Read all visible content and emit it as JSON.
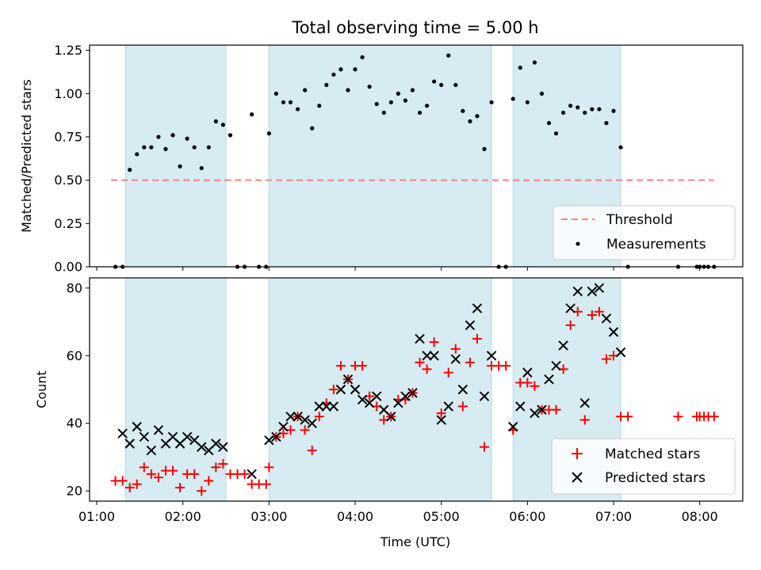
{
  "chart_data": [
    {
      "type": "scatter",
      "title": "Total observing time = 5.00 h",
      "ylabel": "Matched/Predicted stars",
      "xlabel": "",
      "ylim": [
        0,
        1.28
      ],
      "yticks": [
        "0.00",
        "0.25",
        "0.50",
        "0.75",
        "1.00",
        "1.25"
      ],
      "yticks_values": [
        0,
        0.25,
        0.5,
        0.75,
        1.0,
        1.25
      ],
      "x_tick_labels_shown": false,
      "threshold": {
        "value": 0.5,
        "x_start": "01:10",
        "x_end": "08:10",
        "color": "#ff7f7f"
      },
      "observing_windows": [
        [
          "01:20",
          "02:30"
        ],
        [
          "03:00",
          "05:35"
        ],
        [
          "05:50",
          "07:05"
        ]
      ],
      "window_color": "#add8e6",
      "legend": {
        "placement": "lower right",
        "entries": [
          "Threshold",
          "Measurements"
        ]
      },
      "series": [
        {
          "name": "Measurements",
          "color": "#000000",
          "marker": "dot",
          "x": [
            "01:13",
            "01:18",
            "01:23",
            "01:28",
            "01:33",
            "01:38",
            "01:43",
            "01:48",
            "01:53",
            "01:58",
            "02:03",
            "02:08",
            "02:13",
            "02:18",
            "02:23",
            "02:28",
            "02:33",
            "02:38",
            "02:43",
            "02:48",
            "02:53",
            "02:58",
            "03:00",
            "03:05",
            "03:10",
            "03:15",
            "03:20",
            "03:25",
            "03:30",
            "03:35",
            "03:40",
            "03:45",
            "03:50",
            "03:55",
            "04:00",
            "04:05",
            "04:10",
            "04:15",
            "04:20",
            "04:25",
            "04:30",
            "04:35",
            "04:40",
            "04:45",
            "04:50",
            "04:55",
            "05:00",
            "05:05",
            "05:10",
            "05:15",
            "05:20",
            "05:25",
            "05:30",
            "05:35",
            "05:40",
            "05:45",
            "05:50",
            "05:55",
            "06:00",
            "06:05",
            "06:10",
            "06:15",
            "06:20",
            "06:25",
            "06:30",
            "06:35",
            "06:40",
            "06:45",
            "06:50",
            "06:55",
            "07:00",
            "07:05",
            "07:10",
            "07:45",
            "07:58",
            "08:00",
            "08:03",
            "08:06",
            "08:10"
          ],
          "y": [
            0.0,
            0.0,
            0.56,
            0.65,
            0.69,
            0.69,
            0.75,
            0.68,
            0.76,
            0.58,
            0.74,
            0.69,
            0.57,
            0.69,
            0.84,
            0.82,
            0.76,
            0.0,
            0.0,
            0.88,
            0.0,
            0.0,
            0.77,
            1.0,
            0.95,
            0.95,
            0.91,
            1.02,
            0.8,
            0.93,
            1.05,
            1.11,
            1.14,
            1.02,
            1.14,
            1.21,
            1.04,
            0.94,
            0.89,
            0.95,
            1.0,
            0.96,
            1.02,
            0.89,
            0.93,
            1.07,
            1.05,
            1.22,
            1.05,
            0.9,
            0.84,
            0.87,
            0.68,
            0.95,
            0.0,
            0.0,
            0.97,
            1.15,
            0.95,
            1.18,
            1.0,
            0.83,
            0.77,
            0.89,
            0.93,
            0.92,
            0.89,
            0.91,
            0.91,
            0.83,
            0.9,
            0.69,
            0.0,
            0.0,
            0.0,
            0.0,
            0.0,
            0.0,
            0.0
          ]
        }
      ]
    },
    {
      "type": "scatter",
      "title": "",
      "ylabel": "Count",
      "xlabel": "Time (UTC)",
      "xlim": [
        "00:55",
        "08:30"
      ],
      "ylim": [
        17,
        83
      ],
      "yticks": [
        "20",
        "40",
        "60",
        "80"
      ],
      "yticks_values": [
        20,
        40,
        60,
        80
      ],
      "xticks": [
        "01:00",
        "02:00",
        "03:00",
        "04:00",
        "05:00",
        "06:00",
        "07:00",
        "08:00"
      ],
      "observing_windows": [
        [
          "01:20",
          "02:30"
        ],
        [
          "03:00",
          "05:35"
        ],
        [
          "05:50",
          "07:05"
        ]
      ],
      "window_color": "#add8e6",
      "legend": {
        "placement": "lower right",
        "entries": [
          "Matched stars",
          "Predicted stars"
        ]
      },
      "series": [
        {
          "name": "Matched stars",
          "color": "#ff0000",
          "marker": "+",
          "x": [
            "01:13",
            "01:18",
            "01:23",
            "01:28",
            "01:33",
            "01:38",
            "01:43",
            "01:48",
            "01:53",
            "01:58",
            "02:03",
            "02:08",
            "02:13",
            "02:18",
            "02:23",
            "02:28",
            "02:33",
            "02:38",
            "02:43",
            "02:48",
            "02:53",
            "02:58",
            "03:00",
            "03:05",
            "03:10",
            "03:15",
            "03:20",
            "03:25",
            "03:30",
            "03:35",
            "03:40",
            "03:45",
            "03:50",
            "03:55",
            "04:00",
            "04:05",
            "04:10",
            "04:15",
            "04:20",
            "04:25",
            "04:30",
            "04:35",
            "04:40",
            "04:45",
            "04:50",
            "04:55",
            "05:00",
            "05:05",
            "05:10",
            "05:15",
            "05:20",
            "05:25",
            "05:30",
            "05:35",
            "05:40",
            "05:45",
            "05:50",
            "05:55",
            "06:00",
            "06:05",
            "06:10",
            "06:15",
            "06:20",
            "06:25",
            "06:30",
            "06:35",
            "06:40",
            "06:45",
            "06:50",
            "06:55",
            "07:00",
            "07:05",
            "07:10",
            "07:45",
            "07:58",
            "08:00",
            "08:03",
            "08:06",
            "08:10"
          ],
          "y": [
            23,
            23,
            21,
            22,
            27,
            25,
            24,
            26,
            26,
            21,
            25,
            25,
            20,
            23,
            27,
            28,
            25,
            25,
            25,
            22,
            22,
            22,
            27,
            36,
            37,
            38,
            42,
            38,
            32,
            42,
            46,
            50,
            57,
            53,
            57,
            57,
            48,
            45,
            41,
            42,
            47,
            47,
            49,
            58,
            56,
            64,
            43,
            55,
            62,
            45,
            58,
            65,
            33,
            57,
            57,
            57,
            38,
            52,
            52,
            51,
            44,
            44,
            44,
            56,
            69,
            73,
            41,
            72,
            73,
            59,
            60,
            42,
            42,
            42,
            42,
            42,
            42,
            42,
            42
          ]
        },
        {
          "name": "Predicted stars",
          "color": "#000000",
          "marker": "x",
          "x": [
            "01:18",
            "01:23",
            "01:28",
            "01:33",
            "01:38",
            "01:43",
            "01:48",
            "01:53",
            "01:58",
            "02:03",
            "02:08",
            "02:13",
            "02:18",
            "02:23",
            "02:28",
            "02:33",
            "02:48",
            "03:00",
            "03:05",
            "03:10",
            "03:15",
            "03:20",
            "03:25",
            "03:30",
            "03:35",
            "03:40",
            "03:45",
            "03:50",
            "03:55",
            "04:00",
            "04:05",
            "04:10",
            "04:15",
            "04:20",
            "04:25",
            "04:30",
            "04:35",
            "04:40",
            "04:45",
            "04:50",
            "04:55",
            "05:00",
            "05:05",
            "05:10",
            "05:15",
            "05:20",
            "05:25",
            "05:30",
            "05:35",
            "05:50",
            "05:55",
            "06:00",
            "06:05",
            "06:10",
            "06:15",
            "06:20",
            "06:25",
            "06:30",
            "06:35",
            "06:40",
            "06:45",
            "06:50",
            "06:55",
            "07:00",
            "07:05"
          ],
          "y": [
            37,
            34,
            39,
            36,
            32,
            38,
            34,
            36,
            34,
            36,
            35,
            33,
            32,
            34,
            33,
            null,
            25,
            35,
            36,
            39,
            42,
            42,
            41,
            40,
            45,
            45,
            45,
            50,
            53,
            50,
            47,
            46,
            48,
            44,
            42,
            46,
            48,
            49,
            65,
            60,
            60,
            41,
            45,
            59,
            50,
            69,
            74,
            48,
            60,
            39,
            45,
            55,
            43,
            44,
            53,
            57,
            63,
            74,
            79,
            46,
            79,
            80,
            71,
            67,
            61
          ]
        }
      ]
    }
  ]
}
